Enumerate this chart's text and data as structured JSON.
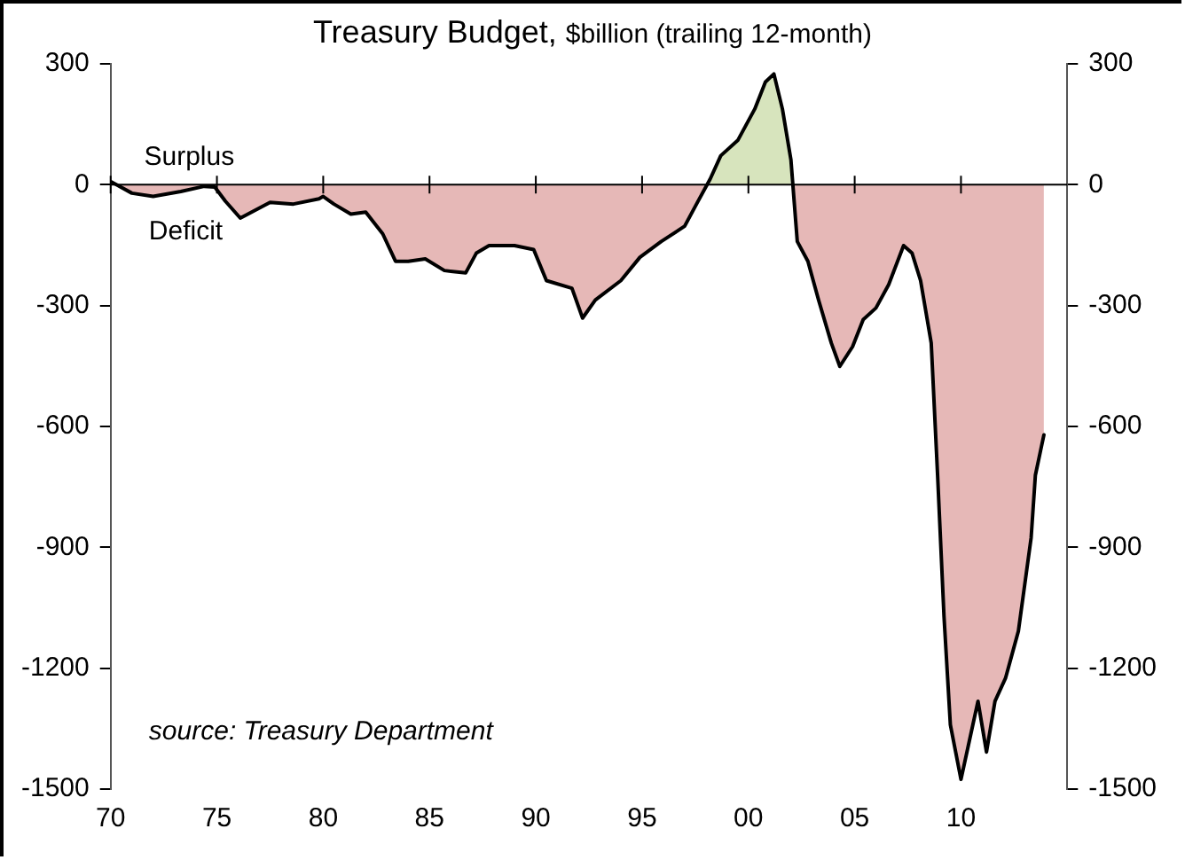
{
  "chart_data": {
    "type": "area",
    "title": "Treasury Budget,",
    "subtitle": "$billion (trailing 12-month)",
    "annotations": [
      "Surplus",
      "Deficit",
      "source: Treasury Department"
    ],
    "x": [
      1970.0,
      1971.0,
      1972.0,
      1973.3,
      1974.4,
      1974.9,
      1975.4,
      1976.1,
      1977.5,
      1978.6,
      1979.8,
      1980.0,
      1980.5,
      1981.3,
      1982.0,
      1982.8,
      1983.4,
      1984.0,
      1984.8,
      1985.7,
      1986.7,
      1987.2,
      1987.8,
      1989.0,
      1989.9,
      1990.5,
      1991.7,
      1992.2,
      1992.8,
      1994.0,
      1994.9,
      1995.9,
      1997.0,
      1997.6,
      1998.2,
      1998.7,
      1999.5,
      2000.3,
      2000.8,
      2001.2,
      2001.6,
      2002.0,
      2002.3,
      2002.8,
      2003.3,
      2003.9,
      2004.3,
      2004.9,
      2005.4,
      2006.0,
      2006.6,
      2007.3,
      2007.7,
      2008.1,
      2008.6,
      2008.9,
      2009.2,
      2009.5,
      2010.0,
      2010.4,
      2010.8,
      2011.2,
      2011.6,
      2012.1,
      2012.7,
      2013.3,
      2013.5,
      2013.9
    ],
    "series": [
      {
        "color": "#d7e4bd",
        "x": [
          1998.2,
          1998.7,
          1999.5,
          2000.3,
          2000.8,
          2001.2,
          2001.6,
          2002.0
        ],
        "values": [
          14,
          72,
          110,
          188,
          255,
          275,
          188,
          62
        ]
      },
      {
        "color": "#e6b8b7",
        "values": [
          8,
          -21,
          -29,
          -17,
          -4,
          -6,
          -41,
          -83,
          -44,
          -48,
          -35,
          -29,
          -48,
          -73,
          -68,
          -122,
          -190,
          -190,
          -184,
          -213,
          -219,
          -170,
          -151,
          -151,
          -161,
          -238,
          -257,
          -331,
          -286,
          -238,
          -180,
          -141,
          -103,
          -44,
          14,
          72,
          110,
          188,
          255,
          275,
          188,
          62,
          -141,
          -190,
          -286,
          -393,
          -451,
          -402,
          -335,
          -306,
          -248,
          -151,
          -170,
          -238,
          -393,
          -721,
          -1070,
          -1340,
          -1476,
          -1379,
          -1282,
          -1408,
          -1282,
          -1224,
          -1108,
          -876,
          -721,
          -621
        ]
      }
    ],
    "xlim": [
      1970,
      2015
    ],
    "xticks": [
      {
        "value": 1970,
        "label": "70"
      },
      {
        "value": 1975,
        "label": "75"
      },
      {
        "value": 1980,
        "label": "80"
      },
      {
        "value": 1985,
        "label": "85"
      },
      {
        "value": 1990,
        "label": "90"
      },
      {
        "value": 1995,
        "label": "95"
      },
      {
        "value": 2000,
        "label": "00"
      },
      {
        "value": 2005,
        "label": "05"
      },
      {
        "value": 2010,
        "label": "10"
      }
    ],
    "ylim": [
      -1500,
      300
    ],
    "yticks": [
      -1500,
      -1200,
      -900,
      -600,
      -300,
      0,
      300
    ],
    "y2lim": [
      -1500,
      300
    ],
    "y2ticks": [
      -1500,
      -1200,
      -900,
      -600,
      -300,
      0,
      300
    ],
    "ref_lines": [
      {
        "axis": "y",
        "value": 0,
        "color": "#000000"
      }
    ],
    "grid": false,
    "legend": false,
    "marker": "none",
    "line_style": "solid"
  }
}
